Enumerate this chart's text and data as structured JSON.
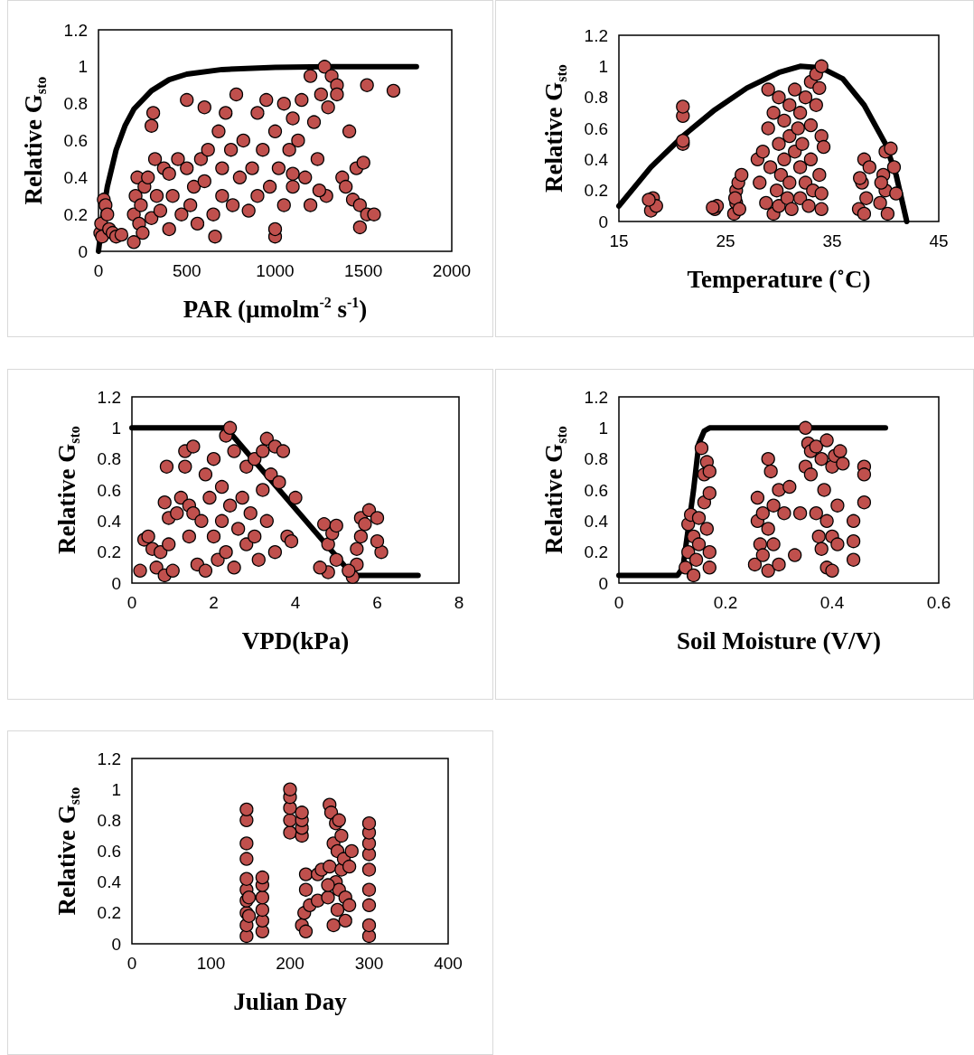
{
  "chart_data": [
    {
      "type": "scatter",
      "xlabel": "PAR (µmolm$^{-2}$ s$^{-1}$)",
      "ylabel": "Relative G$_{sto}$",
      "xlim": [
        0,
        2000
      ],
      "xticks": [
        0,
        500,
        1000,
        1500,
        2000
      ],
      "ylim": [
        0,
        1.2
      ],
      "yticks": [
        0,
        0.2,
        0.4,
        0.6,
        0.8,
        1,
        1.2
      ],
      "marker": "circle",
      "series": [
        {
          "color": "#c0504d",
          "x": [
            10,
            15,
            20,
            30,
            40,
            50,
            60,
            80,
            100,
            130,
            200,
            200,
            210,
            220,
            230,
            240,
            250,
            260,
            280,
            300,
            300,
            310,
            320,
            330,
            350,
            370,
            400,
            400,
            420,
            450,
            470,
            500,
            500,
            520,
            540,
            560,
            580,
            600,
            600,
            620,
            650,
            660,
            680,
            700,
            700,
            720,
            750,
            760,
            780,
            800,
            820,
            850,
            870,
            900,
            900,
            930,
            950,
            970,
            1000,
            1000,
            1020,
            1050,
            1050,
            1080,
            1100,
            1100,
            1130,
            1150,
            1170,
            1200,
            1200,
            1220,
            1240,
            1260,
            1280,
            1290,
            1300,
            1320,
            1350,
            1380,
            1400,
            1420,
            1440,
            1460,
            1480,
            1500,
            1520,
            1480,
            1560,
            1520,
            1670,
            1000,
            1100,
            1250,
            1350
          ],
          "values": [
            0.1,
            0.15,
            0.08,
            0.28,
            0.25,
            0.2,
            0.12,
            0.1,
            0.08,
            0.09,
            0.05,
            0.2,
            0.3,
            0.4,
            0.15,
            0.25,
            0.1,
            0.35,
            0.4,
            0.18,
            0.68,
            0.75,
            0.5,
            0.3,
            0.22,
            0.45,
            0.42,
            0.12,
            0.3,
            0.5,
            0.2,
            0.82,
            0.45,
            0.25,
            0.35,
            0.15,
            0.5,
            0.78,
            0.38,
            0.55,
            0.2,
            0.08,
            0.65,
            0.45,
            0.3,
            0.75,
            0.55,
            0.25,
            0.85,
            0.4,
            0.6,
            0.22,
            0.45,
            0.75,
            0.3,
            0.55,
            0.82,
            0.35,
            0.08,
            0.65,
            0.45,
            0.8,
            0.25,
            0.55,
            0.35,
            0.72,
            0.6,
            0.82,
            0.4,
            0.95,
            0.25,
            0.7,
            0.5,
            0.85,
            1.0,
            0.3,
            0.78,
            0.95,
            0.9,
            0.4,
            0.35,
            0.65,
            0.28,
            0.45,
            0.25,
            0.48,
            0.2,
            0.13,
            0.2,
            0.9,
            0.87,
            0.12,
            0.42,
            0.33,
            0.85
          ]
        },
        {
          "type": "line",
          "marker": "none",
          "color": "#000000",
          "x": [
            0,
            25,
            50,
            100,
            150,
            200,
            300,
            400,
            500,
            700,
            1000,
            1300,
            1800
          ],
          "values": [
            0,
            0.2,
            0.35,
            0.55,
            0.68,
            0.77,
            0.87,
            0.93,
            0.96,
            0.985,
            0.997,
            1,
            1
          ]
        }
      ]
    },
    {
      "type": "scatter",
      "xlabel": "Temperature (˚C)",
      "ylabel": "Relative G$_{sto}$",
      "xlim": [
        15,
        45
      ],
      "xticks": [
        15,
        25,
        35,
        45
      ],
      "ylim": [
        0,
        1.2
      ],
      "yticks": [
        0,
        0.2,
        0.4,
        0.6,
        0.8,
        1,
        1.2
      ],
      "marker": "circle",
      "series": [
        {
          "color": "#c0504d",
          "x": [
            18,
            18.2,
            18.5,
            17.8,
            21,
            21,
            21,
            21,
            24,
            24.2,
            23.8,
            25.8,
            26,
            26,
            26.2,
            26.5,
            25.9,
            26.3,
            28,
            28.5,
            28.2,
            28.8,
            29,
            29,
            29.2,
            29.5,
            29.5,
            29.8,
            30,
            30,
            30,
            30.2,
            30.5,
            30.5,
            30.8,
            31,
            31,
            31,
            31.2,
            31.5,
            31.5,
            31.8,
            32,
            32,
            32,
            32.2,
            32.5,
            32.5,
            32.8,
            33,
            33,
            33,
            33.2,
            33.5,
            33.5,
            33.8,
            34,
            34,
            34,
            34.2,
            33.8,
            34,
            37.5,
            37.8,
            38,
            38.2,
            38.5,
            38,
            37.6,
            39.5,
            39.8,
            40,
            40,
            40.2,
            40.5,
            40.8,
            41,
            39.6
          ],
          "values": [
            0.07,
            0.15,
            0.1,
            0.14,
            0.5,
            0.52,
            0.68,
            0.74,
            0.08,
            0.1,
            0.09,
            0.05,
            0.12,
            0.2,
            0.25,
            0.3,
            0.15,
            0.08,
            0.4,
            0.45,
            0.25,
            0.12,
            0.85,
            0.6,
            0.35,
            0.05,
            0.7,
            0.2,
            0.8,
            0.5,
            0.1,
            0.3,
            0.65,
            0.4,
            0.15,
            0.75,
            0.55,
            0.25,
            0.08,
            0.85,
            0.45,
            0.6,
            0.7,
            0.35,
            0.15,
            0.5,
            0.8,
            0.25,
            0.1,
            0.9,
            0.62,
            0.4,
            0.2,
            0.95,
            0.75,
            0.3,
            1.0,
            0.55,
            0.18,
            0.48,
            0.86,
            0.08,
            0.08,
            0.25,
            0.4,
            0.15,
            0.35,
            0.05,
            0.28,
            0.12,
            0.3,
            0.45,
            0.2,
            0.05,
            0.47,
            0.35,
            0.18,
            0.25
          ]
        },
        {
          "type": "line",
          "marker": "none",
          "color": "#000000",
          "x": [
            15,
            18,
            21,
            24,
            27,
            30,
            32,
            34,
            36,
            38,
            40,
            41,
            41.5,
            42
          ],
          "values": [
            0.1,
            0.35,
            0.55,
            0.72,
            0.86,
            0.96,
            1.0,
            0.99,
            0.92,
            0.75,
            0.5,
            0.3,
            0.15,
            0
          ]
        }
      ]
    },
    {
      "type": "scatter",
      "xlabel": "VPD(kPa)",
      "ylabel": "Relative G$_{sto}$",
      "xlim": [
        0,
        8
      ],
      "xticks": [
        0,
        2,
        4,
        6,
        8
      ],
      "ylim": [
        0,
        1.2
      ],
      "yticks": [
        0,
        0.2,
        0.4,
        0.6,
        0.8,
        1,
        1.2
      ],
      "marker": "circle",
      "series": [
        {
          "color": "#c0504d",
          "x": [
            0.2,
            0.3,
            0.4,
            0.5,
            0.6,
            0.7,
            0.8,
            0.8,
            0.85,
            0.9,
            0.9,
            1.0,
            1.1,
            1.2,
            1.3,
            1.3,
            1.4,
            1.4,
            1.5,
            1.5,
            1.6,
            1.7,
            1.8,
            1.8,
            1.9,
            2.0,
            2.0,
            2.1,
            2.2,
            2.2,
            2.3,
            2.3,
            2.4,
            2.4,
            2.5,
            2.5,
            2.6,
            2.7,
            2.8,
            2.8,
            2.9,
            3.0,
            3.0,
            3.1,
            3.2,
            3.2,
            3.3,
            3.3,
            3.4,
            3.5,
            3.5,
            3.6,
            3.7,
            3.8,
            3.9,
            4.0,
            4.7,
            4.8,
            4.8,
            4.9,
            5.0,
            5.0,
            5.4,
            5.5,
            5.6,
            5.6,
            5.7,
            5.8,
            6.0,
            6.1,
            5.5,
            5.3,
            4.6,
            6.0
          ],
          "values": [
            0.08,
            0.28,
            0.3,
            0.22,
            0.1,
            0.2,
            0.05,
            0.52,
            0.75,
            0.42,
            0.25,
            0.08,
            0.45,
            0.55,
            0.85,
            0.75,
            0.5,
            0.3,
            0.88,
            0.45,
            0.12,
            0.4,
            0.08,
            0.7,
            0.55,
            0.3,
            0.8,
            0.15,
            0.62,
            0.4,
            0.95,
            0.2,
            1.0,
            0.5,
            0.85,
            0.1,
            0.35,
            0.55,
            0.25,
            0.75,
            0.45,
            0.8,
            0.3,
            0.15,
            0.85,
            0.6,
            0.4,
            0.93,
            0.7,
            0.88,
            0.2,
            0.65,
            0.85,
            0.3,
            0.27,
            0.55,
            0.38,
            0.07,
            0.25,
            0.32,
            0.15,
            0.37,
            0.04,
            0.22,
            0.3,
            0.42,
            0.38,
            0.47,
            0.42,
            0.2,
            0.12,
            0.08,
            0.1,
            0.27
          ]
        },
        {
          "type": "line",
          "marker": "none",
          "color": "#000000",
          "x": [
            0,
            2.3,
            5.4,
            7
          ],
          "values": [
            1,
            1,
            0.05,
            0.05
          ]
        }
      ]
    },
    {
      "type": "scatter",
      "xlabel": "Soil Moisture (V/V)",
      "ylabel": "Relative G$_{sto}$",
      "xlim": [
        0,
        0.6
      ],
      "xticks": [
        0,
        0.2,
        0.4,
        0.6
      ],
      "ylim": [
        0,
        1.2
      ],
      "yticks": [
        0,
        0.2,
        0.4,
        0.6,
        0.8,
        1,
        1.2
      ],
      "marker": "circle",
      "series": [
        {
          "color": "#c0504d",
          "x": [
            0.125,
            0.13,
            0.13,
            0.135,
            0.14,
            0.14,
            0.145,
            0.15,
            0.15,
            0.155,
            0.16,
            0.16,
            0.165,
            0.165,
            0.17,
            0.17,
            0.17,
            0.17,
            0.255,
            0.26,
            0.26,
            0.265,
            0.27,
            0.27,
            0.28,
            0.28,
            0.28,
            0.285,
            0.29,
            0.29,
            0.3,
            0.3,
            0.31,
            0.32,
            0.33,
            0.34,
            0.35,
            0.35,
            0.355,
            0.36,
            0.36,
            0.37,
            0.37,
            0.375,
            0.38,
            0.38,
            0.385,
            0.39,
            0.39,
            0.39,
            0.4,
            0.4,
            0.405,
            0.41,
            0.41,
            0.415,
            0.42,
            0.44,
            0.44,
            0.46,
            0.46,
            0.44,
            0.46,
            0.4
          ],
          "values": [
            0.1,
            0.2,
            0.38,
            0.44,
            0.05,
            0.3,
            0.15,
            0.42,
            0.25,
            0.87,
            0.7,
            0.52,
            0.35,
            0.78,
            0.2,
            0.58,
            0.1,
            0.72,
            0.12,
            0.4,
            0.55,
            0.25,
            0.18,
            0.45,
            0.8,
            0.35,
            0.08,
            0.72,
            0.5,
            0.25,
            0.6,
            0.12,
            0.45,
            0.62,
            0.18,
            0.45,
            1.0,
            0.75,
            0.9,
            0.85,
            0.7,
            0.88,
            0.45,
            0.3,
            0.8,
            0.22,
            0.6,
            0.92,
            0.1,
            0.4,
            0.75,
            0.3,
            0.82,
            0.5,
            0.25,
            0.85,
            0.77,
            0.15,
            0.4,
            0.75,
            0.52,
            0.27,
            0.7,
            0.08
          ]
        },
        {
          "type": "line",
          "marker": "none",
          "color": "#000000",
          "x": [
            0,
            0.11,
            0.12,
            0.14,
            0.15,
            0.16,
            0.17,
            0.5
          ],
          "values": [
            0.05,
            0.05,
            0.1,
            0.6,
            0.9,
            0.98,
            1,
            1
          ]
        }
      ]
    },
    {
      "type": "scatter",
      "xlabel": "Julian Day",
      "ylabel": "Relative G$_{sto}$",
      "xlim": [
        0,
        400
      ],
      "xticks": [
        0,
        100,
        200,
        300,
        400
      ],
      "ylim": [
        0,
        1.2
      ],
      "yticks": [
        0,
        0.2,
        0.4,
        0.6,
        0.8,
        1,
        1.2
      ],
      "marker": "circle",
      "series": [
        {
          "color": "#c0504d",
          "x": [
            145,
            145,
            145,
            145,
            145,
            145,
            145,
            145,
            145,
            145,
            148,
            148,
            165,
            165,
            165,
            165,
            165,
            165,
            200,
            200,
            200,
            200,
            200,
            215,
            215,
            215,
            215,
            215,
            218,
            220,
            220,
            220,
            225,
            235,
            235,
            240,
            248,
            250,
            250,
            252,
            255,
            255,
            258,
            258,
            260,
            260,
            262,
            262,
            265,
            265,
            268,
            270,
            270,
            275,
            275,
            278,
            300,
            300,
            300,
            300,
            300,
            300,
            300,
            300,
            300,
            248
          ],
          "values": [
            0.05,
            0.12,
            0.2,
            0.28,
            0.35,
            0.42,
            0.55,
            0.65,
            0.8,
            0.87,
            0.18,
            0.3,
            0.08,
            0.15,
            0.22,
            0.3,
            0.38,
            0.43,
            0.72,
            0.8,
            0.88,
            0.95,
            1.0,
            0.7,
            0.75,
            0.8,
            0.85,
            0.12,
            0.2,
            0.35,
            0.45,
            0.08,
            0.25,
            0.28,
            0.45,
            0.48,
            0.3,
            0.5,
            0.9,
            0.85,
            0.65,
            0.12,
            0.78,
            0.4,
            0.6,
            0.22,
            0.8,
            0.35,
            0.7,
            0.48,
            0.55,
            0.3,
            0.15,
            0.5,
            0.25,
            0.6,
            0.05,
            0.12,
            0.25,
            0.35,
            0.48,
            0.58,
            0.65,
            0.72,
            0.78,
            0.38
          ]
        }
      ]
    }
  ]
}
